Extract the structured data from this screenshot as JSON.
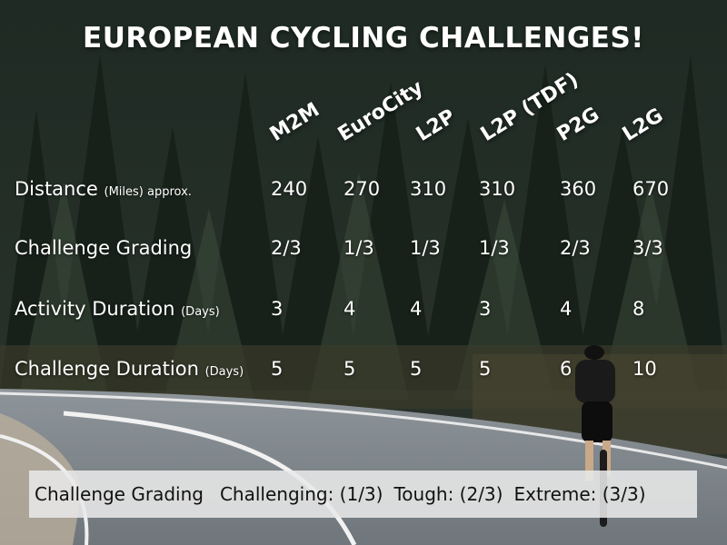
{
  "title": "EUROPEAN CYCLING CHALLENGES!",
  "columns": [
    "M2M",
    "EuroCity",
    "L2P",
    "L2P (TDF)",
    "P2G",
    "L2G"
  ],
  "rows": [
    {
      "label": "Distance",
      "unit": "(Miles) approx.",
      "values": [
        "240",
        "270",
        "310",
        "310",
        "360",
        "670"
      ]
    },
    {
      "label": "Challenge Grading",
      "unit": "",
      "values": [
        "2/3",
        "1/3",
        "1/3",
        "1/3",
        "2/3",
        "3/3"
      ]
    },
    {
      "label": "Activity Duration",
      "unit": "(Days)",
      "values": [
        "3",
        "4",
        "4",
        "3",
        "4",
        "8"
      ]
    },
    {
      "label": "Challenge Duration",
      "unit": "(Days)",
      "values": [
        "5",
        "5",
        "5",
        "5",
        "6",
        "10"
      ]
    }
  ],
  "legend": {
    "title": "Challenge Grading",
    "items": [
      "Challenging: (1/3)",
      "Tough: (2/3)",
      "Extreme: (3/3)"
    ]
  }
}
